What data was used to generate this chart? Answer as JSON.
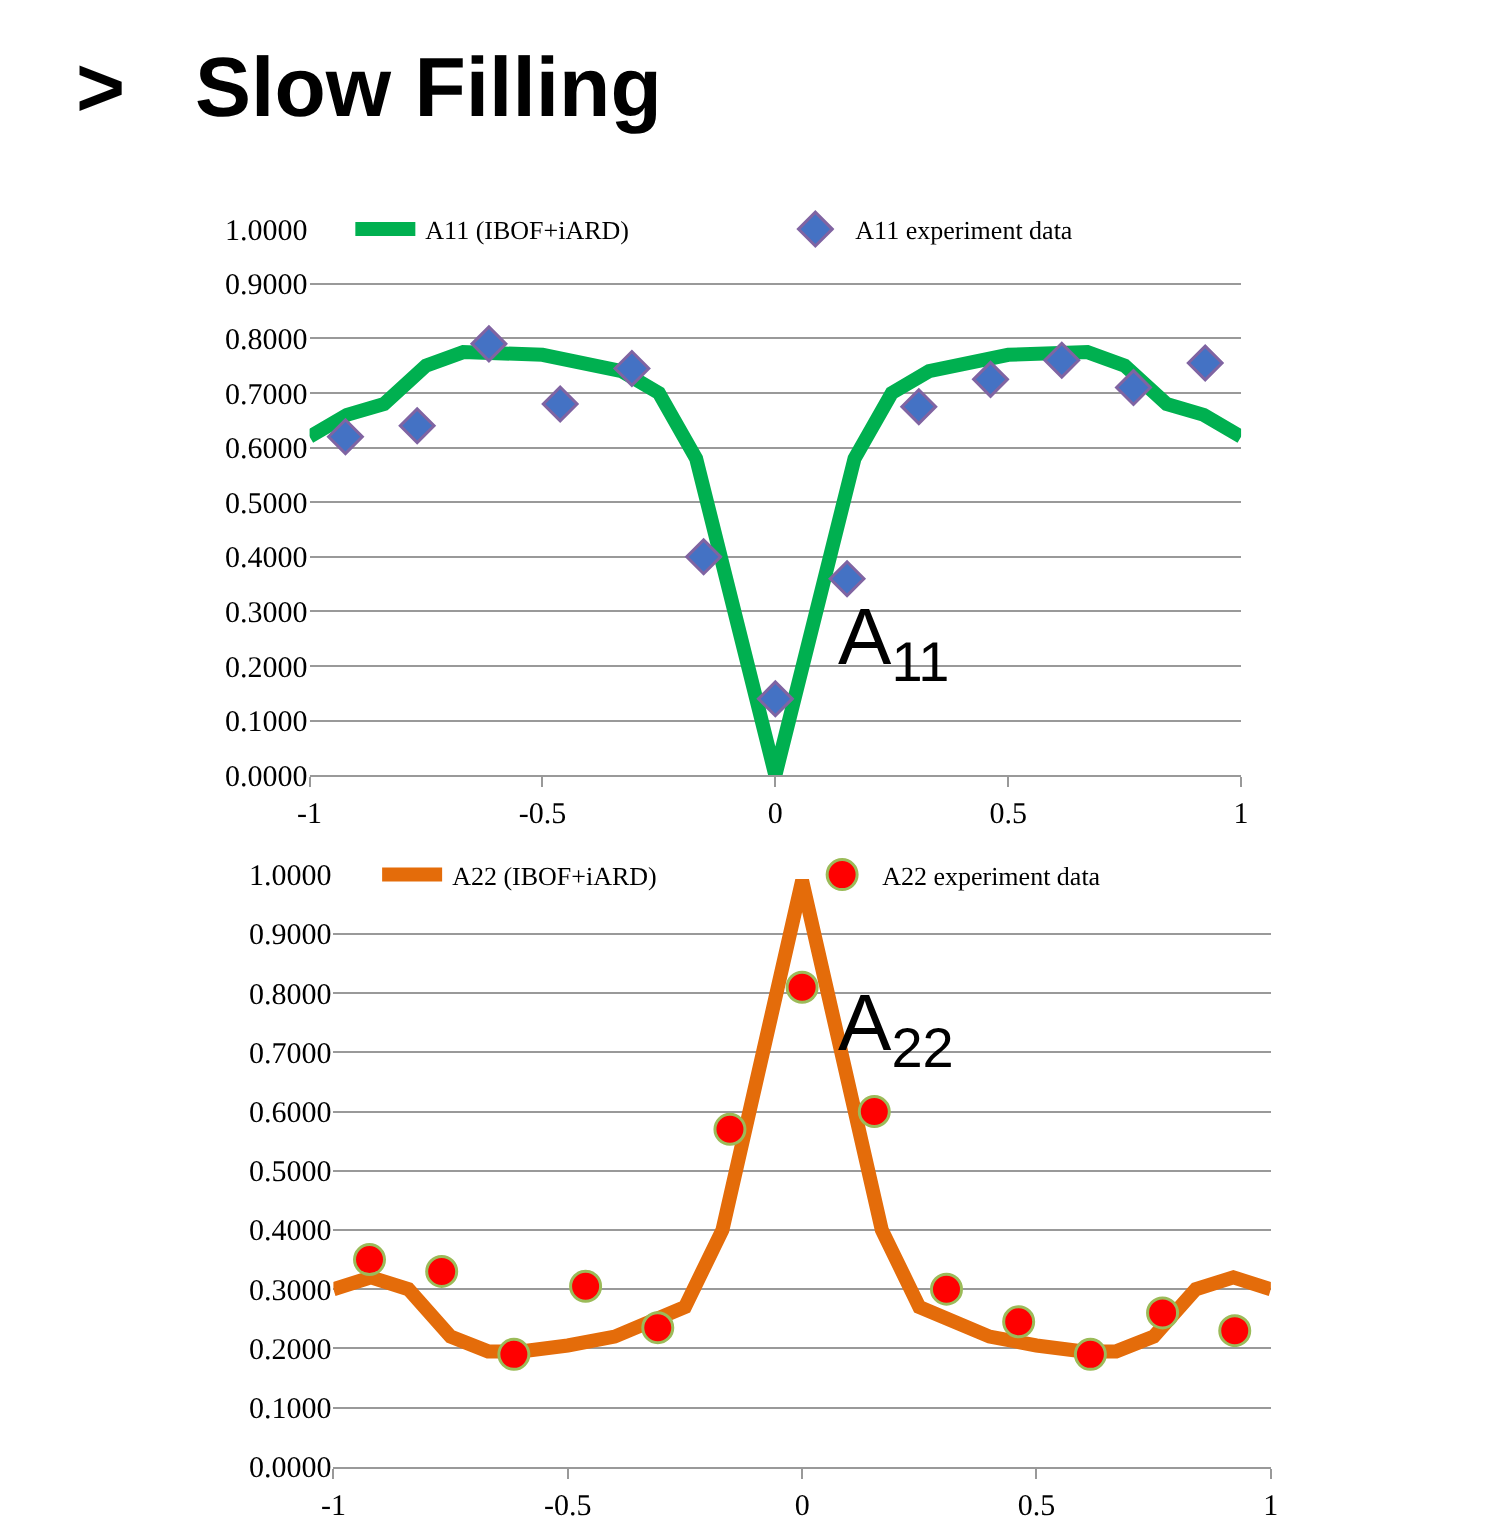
{
  "chart_data": [
    {
      "type": "line",
      "title": ">   Slow Filling",
      "xlim": [
        -1,
        1
      ],
      "xticks": [
        -1,
        -0.5,
        0,
        0.5,
        1
      ],
      "ylim": [
        0,
        1
      ],
      "yticks": [
        {
          "value": 0,
          "label": "0.0000"
        },
        {
          "value": 0.1,
          "label": "0.1000"
        },
        {
          "value": 0.2,
          "label": "0.2000"
        },
        {
          "value": 0.3,
          "label": "0.3000"
        },
        {
          "value": 0.4,
          "label": "0.4000"
        },
        {
          "value": 0.5,
          "label": "0.5000"
        },
        {
          "value": 0.6,
          "label": "0.6000"
        },
        {
          "value": 0.7,
          "label": "0.7000"
        },
        {
          "value": 0.8,
          "label": "0.8000"
        },
        {
          "value": 0.9,
          "label": "0.9000"
        },
        {
          "value": 1,
          "label": "1.0000"
        }
      ],
      "grid": "y",
      "legend": "top",
      "annotations": [
        "A$_{11}$"
      ],
      "series": [
        {
          "name": "A11 (IBOF+iARD)",
          "color": "#00b050",
          "marker": "none",
          "x": [
            -1,
            -0.92,
            -0.84,
            -0.75,
            -0.67,
            -0.5,
            -0.33,
            -0.25,
            -0.17,
            0,
            0.17,
            0.25,
            0.33,
            0.5,
            0.67,
            0.75,
            0.84,
            0.92,
            1
          ],
          "values": [
            0.62,
            0.66,
            0.68,
            0.75,
            0.775,
            0.77,
            0.74,
            0.7,
            0.58,
            0.0,
            0.58,
            0.7,
            0.74,
            0.77,
            0.775,
            0.75,
            0.68,
            0.66,
            0.62
          ]
        },
        {
          "name": "A11 experiment data",
          "type": "scatter",
          "color": "#4472c4",
          "marker": "diamond",
          "x": [
            -0.923,
            -0.769,
            -0.615,
            -0.462,
            -0.308,
            -0.154,
            0,
            0.154,
            0.308,
            0.462,
            0.615,
            0.769,
            0.923
          ],
          "values": [
            0.62,
            0.64,
            0.79,
            0.68,
            0.745,
            0.4,
            0.14,
            0.36,
            0.675,
            0.725,
            0.76,
            0.71,
            0.755
          ]
        }
      ]
    },
    {
      "type": "line",
      "xlim": [
        -1,
        1
      ],
      "xticks": [
        -1,
        -0.5,
        0,
        0.5,
        1
      ],
      "ylim": [
        0,
        1
      ],
      "yticks": [
        {
          "value": 0,
          "label": "0.0000"
        },
        {
          "value": 0.1,
          "label": "0.1000"
        },
        {
          "value": 0.2,
          "label": "0.2000"
        },
        {
          "value": 0.3,
          "label": "0.3000"
        },
        {
          "value": 0.4,
          "label": "0.4000"
        },
        {
          "value": 0.5,
          "label": "0.5000"
        },
        {
          "value": 0.6,
          "label": "0.6000"
        },
        {
          "value": 0.7,
          "label": "0.7000"
        },
        {
          "value": 0.8,
          "label": "0.8000"
        },
        {
          "value": 0.9,
          "label": "0.9000"
        },
        {
          "value": 1,
          "label": "1.0000"
        }
      ],
      "grid": "y",
      "legend": "top",
      "annotations": [
        "A$_{22}$"
      ],
      "series": [
        {
          "name": "A22 (IBOF+iARD)",
          "color": "#e46c0a",
          "marker": "none",
          "x": [
            -1,
            -0.92,
            -0.84,
            -0.75,
            -0.67,
            -0.6,
            -0.5,
            -0.4,
            -0.25,
            -0.17,
            0,
            0.17,
            0.25,
            0.4,
            0.5,
            0.6,
            0.67,
            0.75,
            0.84,
            0.92,
            1
          ],
          "values": [
            0.3,
            0.32,
            0.3,
            0.22,
            0.195,
            0.195,
            0.205,
            0.22,
            0.27,
            0.4,
            0.99,
            0.4,
            0.27,
            0.22,
            0.205,
            0.195,
            0.195,
            0.22,
            0.3,
            0.32,
            0.3
          ]
        },
        {
          "name": "A22 experiment data",
          "type": "scatter",
          "color": "#ff0000",
          "marker": "circle",
          "x": [
            -0.923,
            -0.769,
            -0.615,
            -0.462,
            -0.308,
            -0.154,
            0,
            0.154,
            0.308,
            0.462,
            0.615,
            0.769,
            0.923
          ],
          "values": [
            0.35,
            0.33,
            0.19,
            0.305,
            0.235,
            0.57,
            0.81,
            0.6,
            0.3,
            0.245,
            0.19,
            0.26,
            0.23
          ]
        }
      ]
    }
  ]
}
